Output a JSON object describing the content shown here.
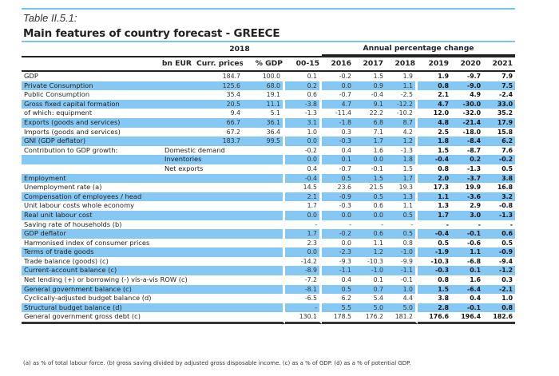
{
  "caption": "Table II.5.1:",
  "title": "Main features of country forecast - GREECE",
  "header": {
    "year_2018": "2018",
    "annual_change": "Annual percentage change",
    "cols": [
      "bn EUR",
      "Curr. prices",
      "% GDP",
      "00-15",
      "2016",
      "2017",
      "2018",
      "2019",
      "2020",
      "2021"
    ]
  },
  "rows": [
    {
      "label": "GDP",
      "sub": "",
      "curr": "184.7",
      "pgdp": "100.0",
      "v": [
        "0.1",
        "-0.2",
        "1.5",
        "1.9",
        "1.9",
        "-9.7",
        "7.9"
      ],
      "hl": false
    },
    {
      "label": "Private Consumption",
      "sub": "",
      "curr": "125.6",
      "pgdp": "68.0",
      "v": [
        "0.2",
        "0.0",
        "0.9",
        "1.1",
        "0.8",
        "-9.0",
        "7.5"
      ],
      "hl": true
    },
    {
      "label": "Public Consumption",
      "sub": "",
      "curr": "35.4",
      "pgdp": "19.1",
      "v": [
        "0.6",
        "-0.7",
        "-0.4",
        "-2.5",
        "2.1",
        "4.9",
        "-2.4"
      ],
      "hl": false
    },
    {
      "label": "Gross fixed capital formation",
      "sub": "",
      "curr": "20.5",
      "pgdp": "11.1",
      "v": [
        "-3.8",
        "4.7",
        "9.1",
        "-12.2",
        "4.7",
        "-30.0",
        "33.0"
      ],
      "hl": true
    },
    {
      "label": "of which: equipment",
      "sub": "",
      "curr": "9.4",
      "pgdp": "5.1",
      "v": [
        "-1.3",
        "-11.4",
        "22.2",
        "-10.2",
        "12.0",
        "-32.0",
        "35.2"
      ],
      "hl": false
    },
    {
      "label": "Exports (goods and services)",
      "sub": "",
      "curr": "66.7",
      "pgdp": "36.1",
      "v": [
        "3.1",
        "-1.8",
        "6.8",
        "8.7",
        "4.8",
        "-21.4",
        "17.9"
      ],
      "hl": true
    },
    {
      "label": "Imports (goods and services)",
      "sub": "",
      "curr": "67.2",
      "pgdp": "36.4",
      "v": [
        "1.0",
        "0.3",
        "7.1",
        "4.2",
        "2.5",
        "-18.0",
        "15.8"
      ],
      "hl": false
    },
    {
      "label": "GNI (GDP deflator)",
      "sub": "",
      "curr": "183.7",
      "pgdp": "99.5",
      "v": [
        "0.0",
        "-0.3",
        "1.7",
        "1.2",
        "1.8",
        "-8.4",
        "6.2"
      ],
      "hl": true
    },
    {
      "label": "Contribution to GDP growth:",
      "sub": "Domestic demand",
      "curr": "",
      "pgdp": "",
      "v": [
        "-0.2",
        "0.4",
        "1.6",
        "-1.3",
        "1.5",
        "-8.7",
        "7.6"
      ],
      "hl": false
    },
    {
      "label": "",
      "sub": "Inventories",
      "curr": "",
      "pgdp": "",
      "v": [
        "0.0",
        "0.1",
        "0.0",
        "1.8",
        "-0.4",
        "0.2",
        "-0.2"
      ],
      "hl": true
    },
    {
      "label": "",
      "sub": "Net exports",
      "curr": "",
      "pgdp": "",
      "v": [
        "0.4",
        "-0.7",
        "-0.1",
        "1.5",
        "0.8",
        "-1.3",
        "0.5"
      ],
      "hl": false
    },
    {
      "label": "Employment",
      "sub": "",
      "curr": "",
      "pgdp": "",
      "v": [
        "-0.4",
        "0.5",
        "1.5",
        "1.7",
        "2.0",
        "-3.7",
        "3.8"
      ],
      "hl": true
    },
    {
      "label": "Unemployment rate (a)",
      "sub": "",
      "curr": "",
      "pgdp": "",
      "v": [
        "14.5",
        "23.6",
        "21.5",
        "19.3",
        "17.3",
        "19.9",
        "16.8"
      ],
      "hl": false
    },
    {
      "label": "Compensation of employees / head",
      "sub": "",
      "curr": "",
      "pgdp": "",
      "v": [
        "2.1",
        "-0.9",
        "0.5",
        "1.3",
        "1.1",
        "-3.6",
        "3.2"
      ],
      "hl": true
    },
    {
      "label": "Unit labour costs whole economy",
      "sub": "",
      "curr": "",
      "pgdp": "",
      "v": [
        "1.7",
        "-0.3",
        "0.6",
        "1.1",
        "1.3",
        "2.9",
        "-0.8"
      ],
      "hl": false
    },
    {
      "label": "Real unit labour cost",
      "sub": "",
      "curr": "",
      "pgdp": "",
      "v": [
        "0.0",
        "0.0",
        "0.0",
        "0.5",
        "1.7",
        "3.0",
        "-1.3"
      ],
      "hl": true
    },
    {
      "label": "Saving rate of households (b)",
      "sub": "",
      "curr": "",
      "pgdp": "",
      "v": [
        "-",
        "-",
        "-",
        "-",
        "-",
        "-",
        "-"
      ],
      "hl": false
    },
    {
      "label": "GDP deflator",
      "sub": "",
      "curr": "",
      "pgdp": "",
      "v": [
        "1.7",
        "-0.2",
        "0.6",
        "0.5",
        "-0.4",
        "-0.1",
        "0.6"
      ],
      "hl": true
    },
    {
      "label": "Harmonised index of consumer prices",
      "sub": "",
      "curr": "",
      "pgdp": "",
      "v": [
        "2.3",
        "0.0",
        "1.1",
        "0.8",
        "0.5",
        "-0.6",
        "0.5"
      ],
      "hl": false
    },
    {
      "label": "Terms of trade goods",
      "sub": "",
      "curr": "",
      "pgdp": "",
      "v": [
        "0.0",
        "-2.3",
        "1.2",
        "-1.0",
        "-1.9",
        "1.1",
        "-0.9"
      ],
      "hl": true
    },
    {
      "label": "Trade balance (goods) (c)",
      "sub": "",
      "curr": "",
      "pgdp": "",
      "v": [
        "-14.2",
        "-9.3",
        "-10.3",
        "-9.9",
        "-10.3",
        "-6.8",
        "-9.4"
      ],
      "hl": false
    },
    {
      "label": "Current-account balance (c)",
      "sub": "",
      "curr": "",
      "pgdp": "",
      "v": [
        "-8.9",
        "-1.1",
        "-1.0",
        "-1.1",
        "-0.3",
        "0.1",
        "-1.2"
      ],
      "hl": true
    },
    {
      "label": "Net lending (+) or borrowing (-) vis-a-vis ROW (c)",
      "sub": "",
      "curr": "",
      "pgdp": "",
      "v": [
        "-7.2",
        "0.4",
        "0.1",
        "-0.1",
        "0.8",
        "1.6",
        "0.3"
      ],
      "hl": false
    },
    {
      "label": "General government balance (c)",
      "sub": "",
      "curr": "",
      "pgdp": "",
      "v": [
        "-8.1",
        "0.5",
        "0.7",
        "1.0",
        "1.5",
        "-6.4",
        "-2.1"
      ],
      "hl": true
    },
    {
      "label": "Cyclically-adjusted budget balance (d)",
      "sub": "",
      "curr": "",
      "pgdp": "",
      "v": [
        "-6.5",
        "6.2",
        "5.4",
        "4.4",
        "3.8",
        "0.4",
        "1.0"
      ],
      "hl": false
    },
    {
      "label": "Structural budget balance (d)",
      "sub": "",
      "curr": "",
      "pgdp": "",
      "v": [
        "-",
        "5.5",
        "5.0",
        "5.0",
        "2.8",
        "-0.1",
        "0.8"
      ],
      "hl": true
    },
    {
      "label": "General government gross debt (c)",
      "sub": "",
      "curr": "",
      "pgdp": "",
      "v": [
        "130.1",
        "178.5",
        "176.2",
        "181.2",
        "176.6",
        "196.4",
        "182.6"
      ],
      "hl": false
    }
  ],
  "footnote": "(a) as % of total labour force. (b) gross saving divided by adjusted gross disposable income.  (c) as a % of  GDP. (d) as a % of  potential GDP.",
  "colors": {
    "highlight": "#85c8f3",
    "rule": "#7cc4f0"
  }
}
